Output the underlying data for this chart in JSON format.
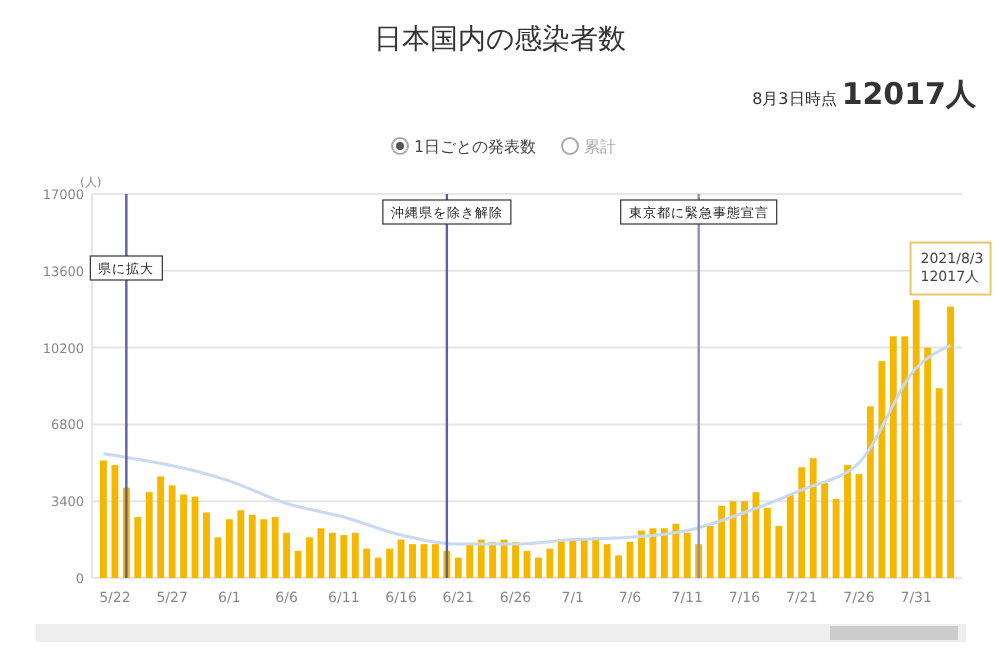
{
  "chart_data": {
    "type": "bar",
    "title": "日本国内の感染者数",
    "subtitle": "8月3日時点 12017人",
    "ylabel": "(人)",
    "x": [
      "--05-21",
      "--05-22",
      "--05-23",
      "--05-24",
      "--05-25",
      "--05-26",
      "--05-27",
      "--05-28",
      "--05-29",
      "--05-30",
      "--05-31",
      "--06-01",
      "--06-02",
      "--06-03",
      "--06-04",
      "--06-05",
      "--06-06",
      "--06-07",
      "--06-08",
      "--06-09",
      "--06-10",
      "--06-11",
      "--06-12",
      "--06-13",
      "--06-14",
      "--06-15",
      "--06-16",
      "--06-17",
      "--06-18",
      "--06-19",
      "--06-20",
      "--06-21",
      "--06-22",
      "--06-23",
      "--06-24",
      "--06-25",
      "--06-26",
      "--06-27",
      "--06-28",
      "--06-29",
      "--06-30",
      "--07-01",
      "--07-02",
      "--07-03",
      "--07-04",
      "--07-05",
      "--07-06",
      "--07-07",
      "--07-08",
      "--07-09",
      "--07-10",
      "--07-11",
      "--07-12",
      "--07-13",
      "--07-14",
      "--07-15",
      "--07-16",
      "--07-17",
      "--07-18",
      "--07-19",
      "--07-20",
      "--07-21",
      "--07-22",
      "--07-23",
      "--07-24",
      "--07-25",
      "--07-26",
      "--07-27",
      "--07-28",
      "--07-29",
      "--07-30",
      "--07-31",
      "--08-01",
      "--08-02",
      "--08-03"
    ],
    "xlim": [
      "--05-20",
      "--08-04"
    ],
    "xticks": [
      {
        "value": "--05-22",
        "label": "5/22"
      },
      {
        "value": "--05-27",
        "label": "5/27"
      },
      {
        "value": "--06-01",
        "label": "6/1"
      },
      {
        "value": "--06-06",
        "label": "6/6"
      },
      {
        "value": "--06-11",
        "label": "6/11"
      },
      {
        "value": "--06-16",
        "label": "6/16"
      },
      {
        "value": "--06-21",
        "label": "6/21"
      },
      {
        "value": "--06-26",
        "label": "6/26"
      },
      {
        "value": "--07-01",
        "label": "7/1"
      },
      {
        "value": "--07-06",
        "label": "7/6"
      },
      {
        "value": "--07-11",
        "label": "7/11"
      },
      {
        "value": "--07-16",
        "label": "7/16"
      },
      {
        "value": "--07-21",
        "label": "7/21"
      },
      {
        "value": "--07-26",
        "label": "7/26"
      },
      {
        "value": "--07-31",
        "label": "7/31"
      }
    ],
    "series": [
      {
        "color": "#f5b800",
        "values": [
          5200,
          5000,
          4000,
          2700,
          3800,
          4500,
          4100,
          3700,
          3600,
          2900,
          1800,
          2600,
          3000,
          2800,
          2600,
          2700,
          2000,
          1200,
          1800,
          2200,
          2000,
          1900,
          2000,
          1300,
          900,
          1300,
          1700,
          1500,
          1500,
          1500,
          1200,
          900,
          1500,
          1700,
          1600,
          1700,
          1600,
          1200,
          900,
          1300,
          1700,
          1700,
          1700,
          1800,
          1500,
          1000,
          1600,
          2100,
          2200,
          2200,
          2400,
          2000,
          1500,
          2300,
          3200,
          3400,
          3400,
          3800,
          3100,
          2300,
          3700,
          4900,
          5300,
          4200,
          3500,
          5000,
          4600,
          7600,
          9600,
          10700,
          10700,
          12300,
          10200,
          8400,
          12017
        ]
      },
      {
        "type": "line",
        "color": "#c9d9ef",
        "x": [
          "--05-21",
          "--06-01",
          "--06-06",
          "--06-11",
          "--06-16",
          "--06-21",
          "--06-26",
          "--07-01",
          "--07-06",
          "--07-11",
          "--07-16",
          "--07-21",
          "--07-26",
          "--07-31",
          "--08-03"
        ],
        "values": [
          5500,
          4300,
          3300,
          2700,
          1900,
          1500,
          1500,
          1700,
          1800,
          2100,
          2900,
          3900,
          5100,
          9300,
          10300
        ]
      }
    ],
    "ylim": [
      0,
      17000
    ],
    "yticks": [
      0,
      3400,
      6800,
      10200,
      13600,
      17000
    ],
    "grid": "y",
    "ref_lines": [
      {
        "axis": "x",
        "value": "--05-23",
        "label": "県に拡大",
        "color": "#5b5fa8"
      },
      {
        "axis": "x",
        "value": "--06-20",
        "label": "沖縄県を除き解除",
        "color": "#5b5fa8"
      },
      {
        "axis": "x",
        "value": "--07-12",
        "label": "東京都に緊急事態宣言",
        "color": "#8a8fc8"
      }
    ],
    "annotations": [
      {
        "text": "2021/8/3\n12017人",
        "x": "--08-03",
        "y": 12017
      },
      "1日ごとの発表数",
      "累計"
    ]
  }
}
